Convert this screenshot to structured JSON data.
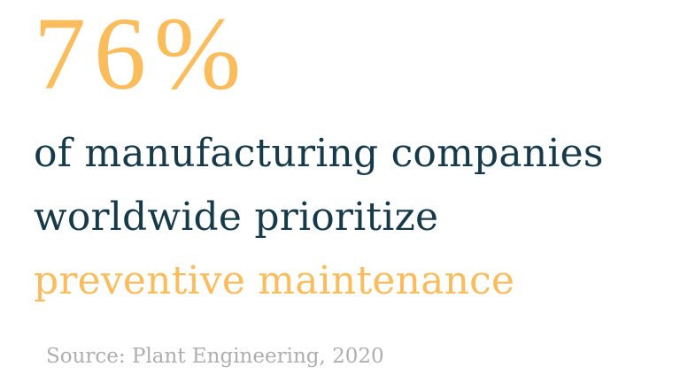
{
  "stat": {
    "value": "76%",
    "line1": "of manufacturing companies",
    "line2": "worldwide prioritize",
    "line3": "preventive maintenance",
    "source": "Source: Plant Engineering, 2020"
  },
  "colors": {
    "accent": "#fbbc5c",
    "primary": "#163a4a",
    "muted": "#aeaeae",
    "background": "#ffffff"
  }
}
